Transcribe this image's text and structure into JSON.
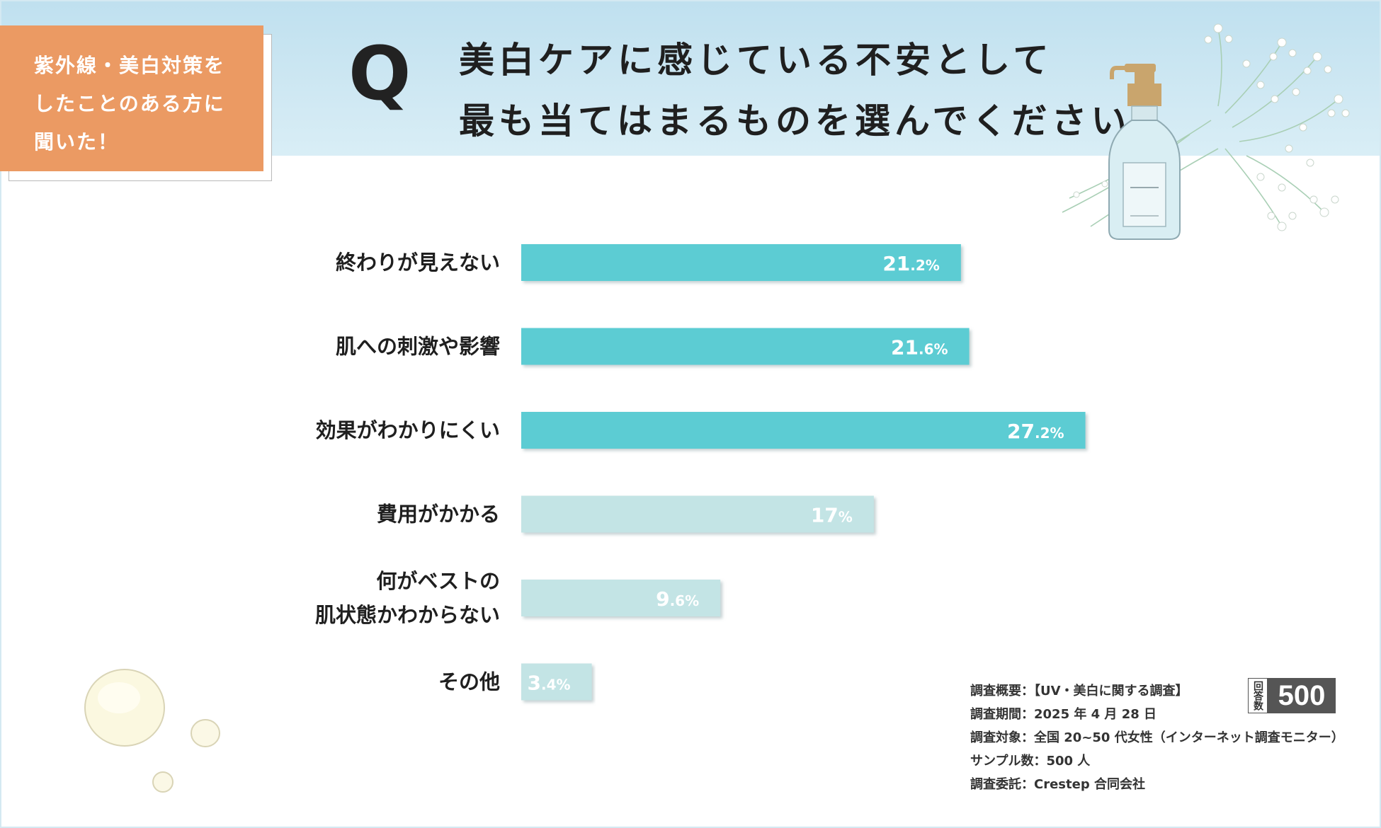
{
  "tag": {
    "text": "紫外線・美白対策を\nしたことのある方に\n聞いた！"
  },
  "q_mark": "Q",
  "question": "美白ケアに感じている不安として\n最も当てはまるものを選んでください",
  "colors": {
    "highlight": "#5bccd3",
    "normal": "#c3e4e5",
    "tag": "#eb9a63",
    "header": "#c9e6f2"
  },
  "chart_data": {
    "type": "bar",
    "orientation": "horizontal",
    "categories": [
      "終わりが見えない",
      "肌への刺激や影響",
      "効果がわかりにくい",
      "費用がかかる",
      "何がベストの\n肌状態かわからない",
      "その他"
    ],
    "values": [
      21.2,
      21.6,
      27.2,
      17,
      9.6,
      3.4
    ],
    "value_labels_int": [
      "21",
      "21",
      "27",
      "17",
      "9",
      "3"
    ],
    "value_labels_dec": [
      ".2%",
      ".6%",
      ".2%",
      "%",
      ".6%",
      ".4%"
    ],
    "highlighted": [
      true,
      true,
      true,
      false,
      false,
      false
    ],
    "xlim": [
      0,
      28
    ],
    "grid": false,
    "title": "",
    "xlabel": "",
    "ylabel": ""
  },
  "survey": {
    "lines": [
      "調査概要：【UV・美白に関する調査】",
      "調査期間：2025 年 4 月 28 日",
      "調査対象：全国 20~50 代女性（インターネット調査モニター）",
      "サンプル数：500 人",
      "調査委託：Crestep 合同会社"
    ]
  },
  "respondents": {
    "label": "回答数",
    "value": "500"
  }
}
